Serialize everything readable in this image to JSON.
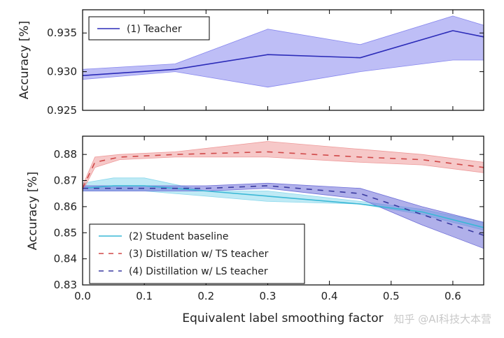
{
  "chart_data": [
    {
      "type": "line",
      "ylabel": "Accuracy [%]",
      "xlim": [
        0.0,
        0.65
      ],
      "ylim": [
        0.925,
        0.938
      ],
      "yticks": [
        0.925,
        0.93,
        0.935
      ],
      "ytick_labels": [
        "0.925",
        "0.930",
        "0.935"
      ],
      "show_xtick_labels": false,
      "legend_position": "top-left",
      "series": [
        {
          "name": "(1) Teacher",
          "color": "#2b2bb8",
          "band_color": "#8888ee",
          "style": "solid",
          "x": [
            0.0,
            0.15,
            0.3,
            0.45,
            0.6,
            0.65
          ],
          "y": [
            0.9295,
            0.9303,
            0.9322,
            0.9318,
            0.9353,
            0.9345
          ],
          "lower": [
            0.929,
            0.93,
            0.928,
            0.93,
            0.9315,
            0.9315
          ],
          "upper": [
            0.9303,
            0.931,
            0.9355,
            0.9335,
            0.9372,
            0.936
          ]
        }
      ]
    },
    {
      "type": "line",
      "xlabel": "Equivalent label smoothing factor",
      "ylabel": "Accuracy [%]",
      "xlim": [
        0.0,
        0.65
      ],
      "ylim": [
        0.83,
        0.887
      ],
      "xticks": [
        0.0,
        0.1,
        0.2,
        0.3,
        0.4,
        0.5,
        0.6
      ],
      "xtick_labels": [
        "0.0",
        "0.1",
        "0.2",
        "0.3",
        "0.4",
        "0.5",
        "0.6"
      ],
      "yticks": [
        0.83,
        0.84,
        0.85,
        0.86,
        0.87,
        0.88
      ],
      "ytick_labels": [
        "0.83",
        "0.84",
        "0.85",
        "0.86",
        "0.87",
        "0.88"
      ],
      "legend_position": "bottom-left",
      "series": [
        {
          "name": "(2) Student baseline",
          "color": "#3ab8d6",
          "band_color": "#8ad8ec",
          "style": "solid",
          "x": [
            0.0,
            0.05,
            0.1,
            0.2,
            0.3,
            0.45,
            0.55,
            0.65
          ],
          "y": [
            0.867,
            0.868,
            0.868,
            0.866,
            0.864,
            0.861,
            0.858,
            0.852
          ],
          "lower": [
            0.866,
            0.866,
            0.866,
            0.864,
            0.862,
            0.861,
            0.857,
            0.851
          ],
          "upper": [
            0.869,
            0.871,
            0.871,
            0.866,
            0.866,
            0.862,
            0.859,
            0.854
          ]
        },
        {
          "name": "(3) Distillation w/ TS teacher",
          "color": "#d04848",
          "band_color": "#ee9a9a",
          "style": "dashed",
          "x": [
            0.0,
            0.02,
            0.06,
            0.15,
            0.3,
            0.45,
            0.55,
            0.65
          ],
          "y": [
            0.867,
            0.877,
            0.879,
            0.88,
            0.881,
            0.879,
            0.878,
            0.875
          ],
          "lower": [
            0.866,
            0.875,
            0.878,
            0.879,
            0.879,
            0.877,
            0.876,
            0.873
          ],
          "upper": [
            0.868,
            0.879,
            0.88,
            0.881,
            0.885,
            0.882,
            0.88,
            0.877
          ]
        },
        {
          "name": "(4) Distillation w/ LS teacher",
          "color": "#3a3aa0",
          "band_color": "#7070d8",
          "style": "dashed",
          "x": [
            0.0,
            0.1,
            0.2,
            0.3,
            0.45,
            0.55,
            0.65
          ],
          "y": [
            0.867,
            0.867,
            0.867,
            0.868,
            0.865,
            0.857,
            0.849
          ],
          "lower": [
            0.866,
            0.866,
            0.866,
            0.867,
            0.863,
            0.853,
            0.844
          ],
          "upper": [
            0.868,
            0.868,
            0.868,
            0.869,
            0.867,
            0.86,
            0.854
          ]
        }
      ]
    }
  ],
  "watermark": "知乎 @AI科技大本营"
}
